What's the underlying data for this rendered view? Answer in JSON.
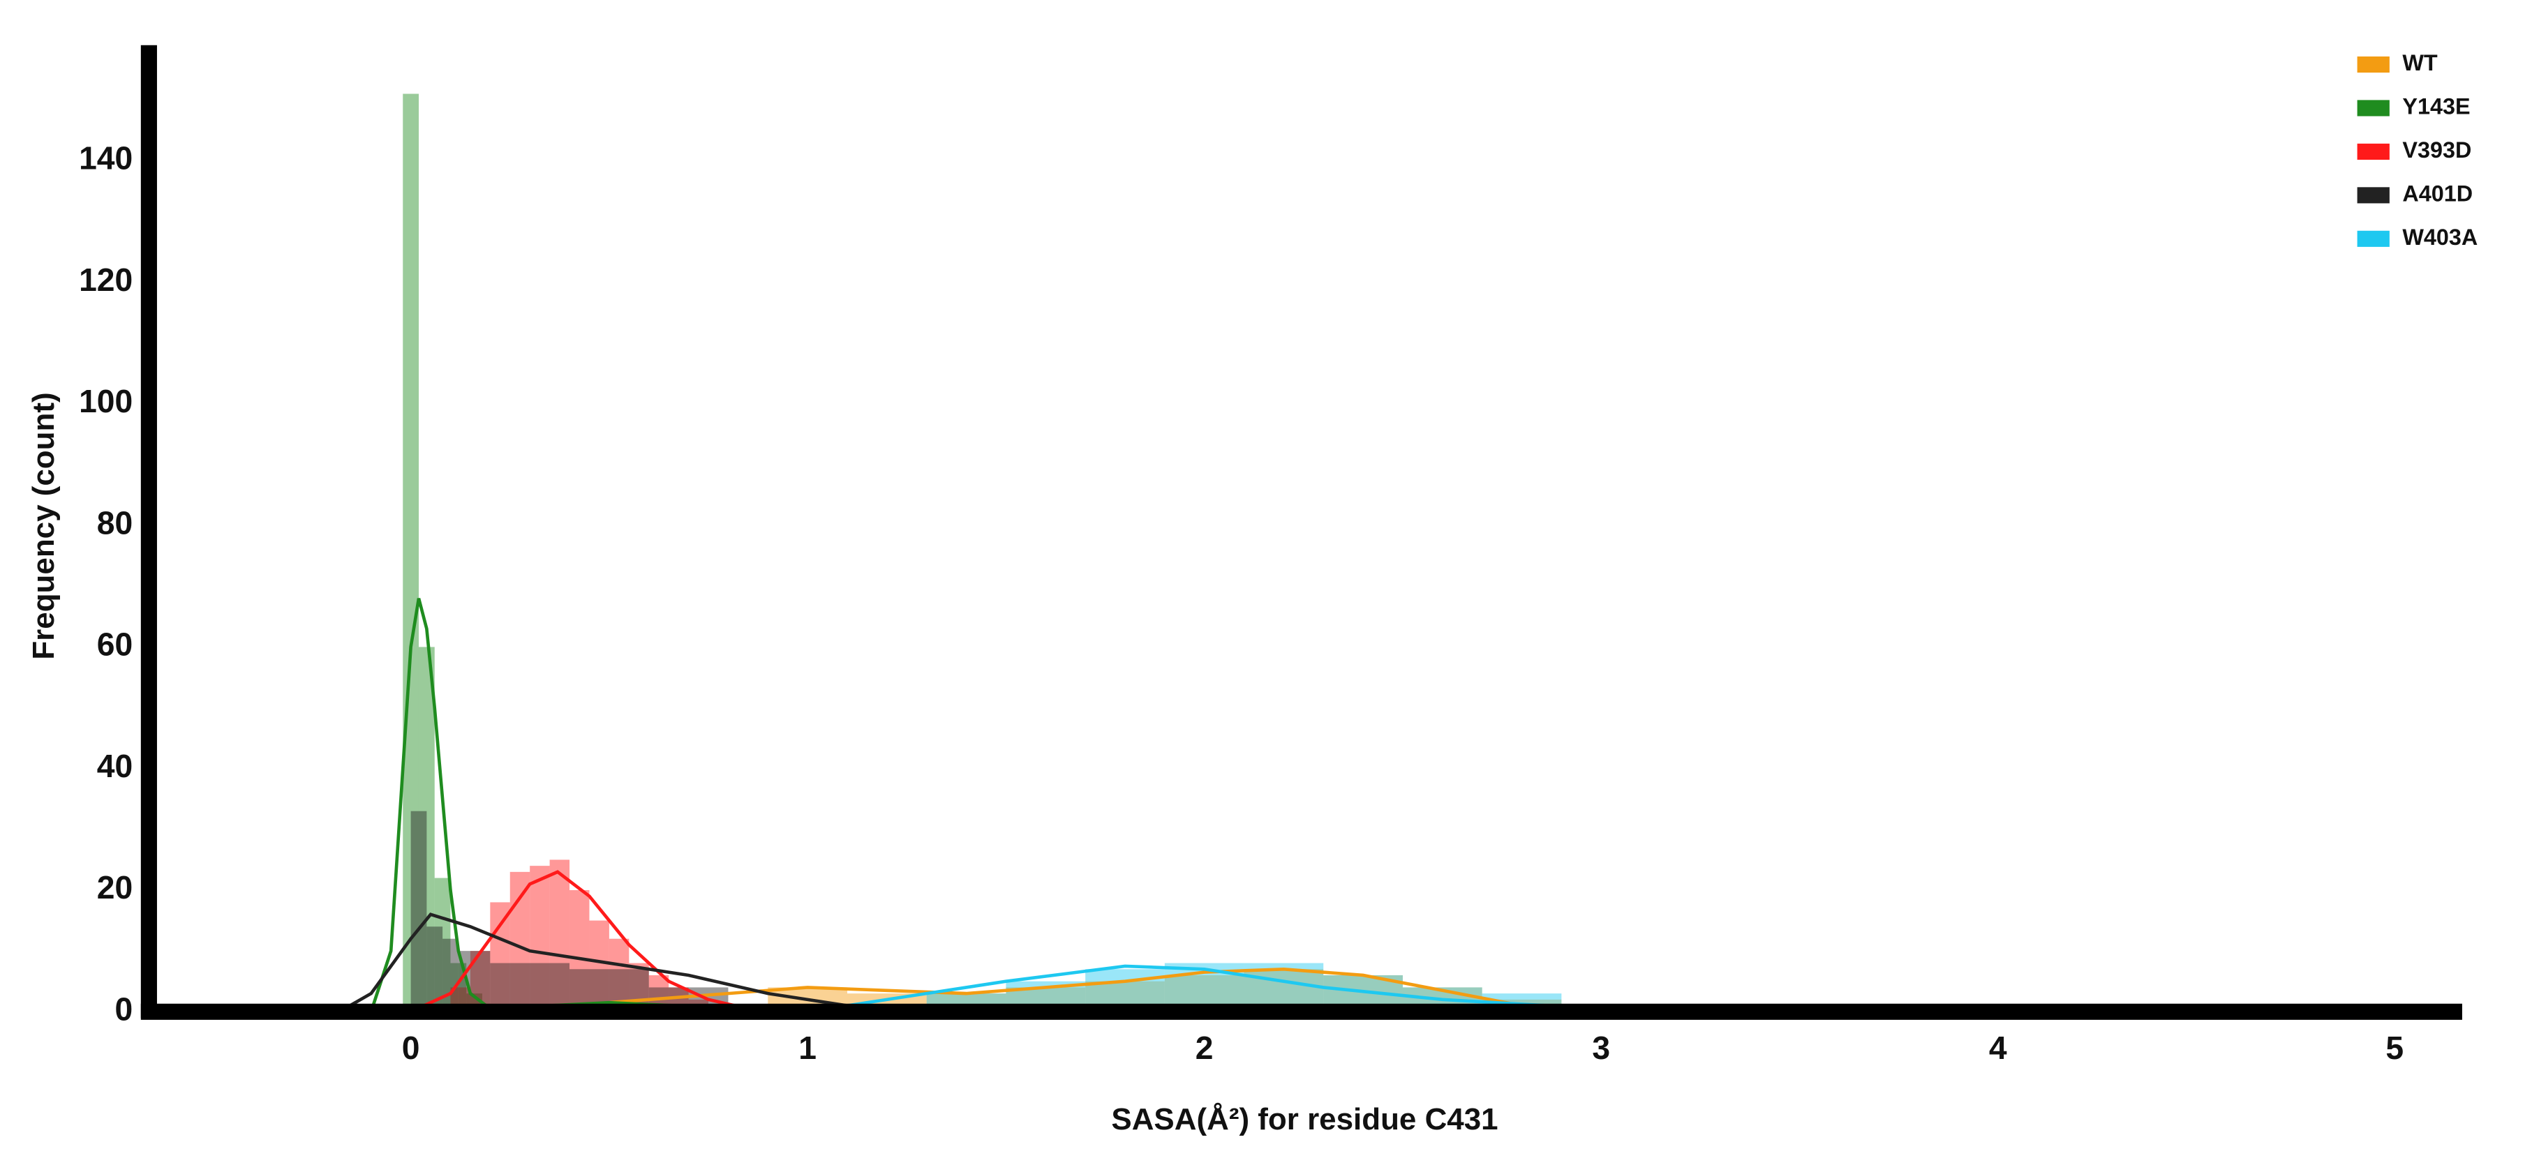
{
  "chart_data": {
    "type": "histogram",
    "xlabel": "SASA(Å²) for residue C431",
    "ylabel": "Frequency (count)",
    "xlim": [
      -0.66,
      5.17
    ],
    "xticks": [
      0,
      1,
      2,
      3,
      4,
      5
    ],
    "ylim": [
      0,
      159
    ],
    "yticks": [
      0,
      20,
      40,
      60,
      80,
      100,
      120,
      140
    ],
    "grid": false,
    "legend": "upper right",
    "series": [
      {
        "name": "WT",
        "color": "#f39c12",
        "bins": [
          0.9,
          1.1,
          1.3,
          1.5,
          1.7,
          1.9,
          2.1,
          2.3,
          2.5,
          2.7,
          2.9
        ],
        "values": [
          4,
          3,
          3,
          4,
          5,
          6,
          7,
          6,
          4,
          2
        ],
        "kde": {
          "x": [
            0.5,
            0.8,
            1.0,
            1.2,
            1.4,
            1.6,
            1.8,
            2.0,
            2.2,
            2.4,
            2.6,
            2.8,
            3.0
          ],
          "y": [
            1.5,
            3,
            4,
            3.5,
            3,
            4,
            5,
            6.5,
            7,
            6,
            3.5,
            1,
            0
          ]
        }
      },
      {
        "name": "Y143E",
        "color": "#1f8c1f",
        "bins": [
          -0.02,
          0.02,
          0.06,
          0.1,
          0.14,
          0.18
        ],
        "values": [
          151,
          60,
          22,
          8,
          3
        ],
        "kde": {
          "x": [
            -0.1,
            -0.05,
            -0.02,
            0.0,
            0.02,
            0.04,
            0.06,
            0.08,
            0.1,
            0.12,
            0.15,
            0.2,
            0.5,
            1.0
          ],
          "y": [
            0,
            10,
            40,
            60,
            68,
            63,
            50,
            35,
            20,
            10,
            3,
            0.5,
            1.5,
            0
          ]
        }
      },
      {
        "name": "V393D",
        "color": "#ff1a1a",
        "bins": [
          0.1,
          0.15,
          0.2,
          0.25,
          0.3,
          0.35,
          0.4,
          0.45,
          0.5,
          0.55,
          0.6,
          0.65,
          0.7,
          0.75,
          0.8
        ],
        "values": [
          4,
          10,
          18,
          23,
          24,
          25,
          20,
          15,
          12,
          8,
          6,
          4,
          2,
          1
        ],
        "kde": {
          "x": [
            0.0,
            0.1,
            0.2,
            0.3,
            0.37,
            0.45,
            0.55,
            0.65,
            0.75,
            0.85,
            0.9
          ],
          "y": [
            0,
            3,
            12,
            21,
            23,
            19,
            11,
            5,
            2,
            0.5,
            0
          ]
        }
      },
      {
        "name": "A401D",
        "color": "#222222",
        "bins": [
          0.0,
          0.04,
          0.08,
          0.12,
          0.2,
          0.4,
          0.6,
          0.8
        ],
        "values": [
          33,
          14,
          12,
          10,
          8,
          7,
          4
        ],
        "kde": {
          "x": [
            -0.18,
            -0.1,
            0.0,
            0.05,
            0.15,
            0.3,
            0.5,
            0.7,
            0.9,
            1.1,
            1.3
          ],
          "y": [
            0,
            3,
            12,
            16,
            14,
            10,
            8,
            6,
            3,
            1,
            0
          ]
        }
      },
      {
        "name": "W403A",
        "color": "#1ec8f0",
        "bins": [
          1.1,
          1.3,
          1.5,
          1.7,
          1.9,
          2.1,
          2.3,
          2.5,
          2.7,
          2.9,
          3.1
        ],
        "values": [
          1,
          3,
          5,
          7,
          8,
          8,
          6,
          4,
          3,
          1
        ],
        "kde": {
          "x": [
            0.9,
            1.1,
            1.3,
            1.5,
            1.8,
            2.0,
            2.3,
            2.6,
            3.0,
            3.2
          ],
          "y": [
            0,
            1,
            3,
            5,
            7.5,
            7,
            4,
            2,
            0.5,
            0
          ]
        }
      }
    ]
  }
}
